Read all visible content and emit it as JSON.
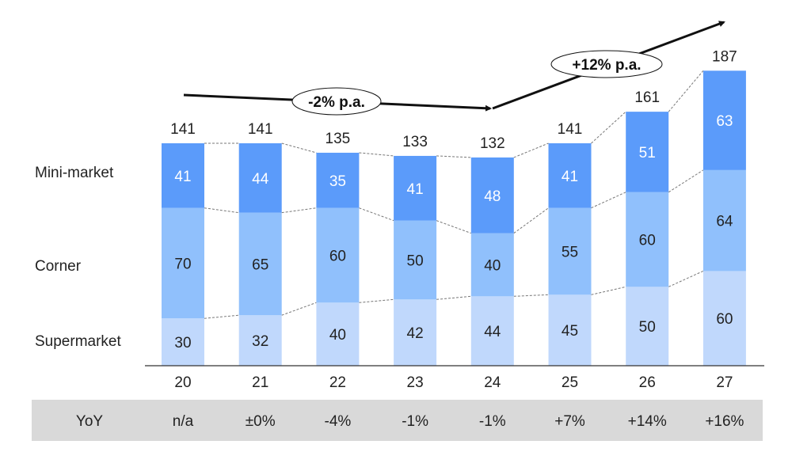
{
  "chart_data": {
    "type": "bar",
    "stacked": true,
    "categories": [
      "20",
      "21",
      "22",
      "23",
      "24",
      "25",
      "26",
      "27"
    ],
    "series": [
      {
        "name": "Supermarket",
        "values": [
          30,
          32,
          40,
          42,
          44,
          45,
          50,
          60
        ],
        "color": "#C0D8FC",
        "label_color": "#222222"
      },
      {
        "name": "Corner",
        "values": [
          70,
          65,
          60,
          50,
          40,
          55,
          60,
          64
        ],
        "color": "#90C0FC",
        "label_color": "#222222"
      },
      {
        "name": "Mini-market",
        "values": [
          41,
          44,
          35,
          41,
          48,
          41,
          51,
          63
        ],
        "color": "#5B9BFA",
        "label_color": "#FFFFFF"
      }
    ],
    "totals": [
      "141",
      "141",
      "135",
      "133",
      "132",
      "141",
      "161",
      "187"
    ],
    "yoy_label": "YoY",
    "yoy": [
      "n/a",
      "±0%",
      "-4%",
      "-1%",
      "-1%",
      "+7%",
      "+14%",
      "+16%"
    ],
    "annotations": [
      {
        "text": "-2% p.a.",
        "from": "20",
        "to": "24"
      },
      {
        "text": "+12% p.a.",
        "from": "24",
        "to": "27"
      }
    ]
  }
}
